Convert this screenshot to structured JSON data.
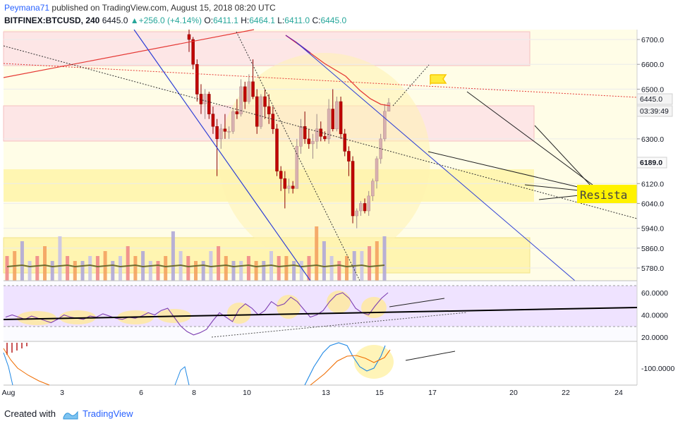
{
  "header": {
    "author": "Peymana71",
    "published_text": "published on TradingView.com, August 15, 2018 08:20 UTC",
    "symbol": "BITFINEX:BTCUSD, 240",
    "last": "6445.0",
    "change_arrow": "▲",
    "change": "+256.0 (+4.14%)",
    "o_label": "O:",
    "o_value": "6411.1",
    "h_label": "H:",
    "h_value": "6464.1",
    "l_label": "L:",
    "l_value": "6411.0",
    "c_label": "C:",
    "c_value": "6445.0"
  },
  "footer": {
    "created_with": "Created with",
    "brand": "TradingView"
  },
  "annotation_text": "Resista",
  "colors": {
    "up": "#d8b0b0",
    "down": "#c00000",
    "bg_price": "#fffde7",
    "bg_rsi": "#f3e8ff",
    "resistance_zone": "#fde0e0",
    "support_zone": "#fff6b0",
    "channel_line": "#2e3fd6",
    "trend_red": "#e53935"
  },
  "chart_data": {
    "type": "candlestick",
    "price_axis": {
      "ticks": [
        6700.0,
        6600.0,
        6500.0,
        6445.0,
        6300.0,
        6189.0,
        6120.0,
        6040.0,
        5940.0,
        5860.0,
        5780.0
      ],
      "tick_labels": [
        "6700.0",
        "6600.0",
        "6500.0",
        "6445.0",
        "6300.0",
        "6189.0",
        "6120.0",
        "6040.0",
        "5940.0",
        "5860.0",
        "5780.0"
      ],
      "last_price": 6445.0,
      "countdown": "03:39:49",
      "marker_price": 6189.0
    },
    "x_axis": {
      "tick_labels": [
        "Aug",
        "3",
        "6",
        "8",
        "10",
        "13",
        "15",
        "17",
        "20",
        "22",
        "24"
      ]
    },
    "candles": [
      {
        "o": 6720,
        "h": 6740,
        "l": 6650,
        "c": 6700
      },
      {
        "o": 6700,
        "h": 6710,
        "l": 6580,
        "c": 6600
      },
      {
        "o": 6600,
        "h": 6620,
        "l": 6450,
        "c": 6480
      },
      {
        "o": 6480,
        "h": 6520,
        "l": 6400,
        "c": 6440
      },
      {
        "o": 6440,
        "h": 6500,
        "l": 6380,
        "c": 6480
      },
      {
        "o": 6480,
        "h": 6490,
        "l": 6380,
        "c": 6400
      },
      {
        "o": 6400,
        "h": 6430,
        "l": 6320,
        "c": 6350
      },
      {
        "o": 6350,
        "h": 6380,
        "l": 6150,
        "c": 6300
      },
      {
        "o": 6300,
        "h": 6360,
        "l": 6260,
        "c": 6340
      },
      {
        "o": 6340,
        "h": 6400,
        "l": 6300,
        "c": 6330
      },
      {
        "o": 6330,
        "h": 6350,
        "l": 6300,
        "c": 6330
      },
      {
        "o": 6330,
        "h": 6420,
        "l": 6320,
        "c": 6410
      },
      {
        "o": 6410,
        "h": 6460,
        "l": 6380,
        "c": 6400
      },
      {
        "o": 6400,
        "h": 6540,
        "l": 6390,
        "c": 6510
      },
      {
        "o": 6510,
        "h": 6530,
        "l": 6420,
        "c": 6450
      },
      {
        "o": 6450,
        "h": 6560,
        "l": 6440,
        "c": 6530
      },
      {
        "o": 6530,
        "h": 6620,
        "l": 6460,
        "c": 6470
      },
      {
        "o": 6470,
        "h": 6500,
        "l": 6320,
        "c": 6350
      },
      {
        "o": 6350,
        "h": 6480,
        "l": 6340,
        "c": 6470
      },
      {
        "o": 6470,
        "h": 6500,
        "l": 6380,
        "c": 6430
      },
      {
        "o": 6430,
        "h": 6480,
        "l": 6360,
        "c": 6400
      },
      {
        "o": 6400,
        "h": 6430,
        "l": 6320,
        "c": 6340
      },
      {
        "o": 6340,
        "h": 6360,
        "l": 6150,
        "c": 6170
      },
      {
        "o": 6170,
        "h": 6190,
        "l": 6090,
        "c": 6140
      },
      {
        "o": 6140,
        "h": 6170,
        "l": 6020,
        "c": 6100
      },
      {
        "o": 6100,
        "h": 6140,
        "l": 6080,
        "c": 6110
      },
      {
        "o": 6110,
        "h": 6130,
        "l": 6080,
        "c": 6100
      },
      {
        "o": 6100,
        "h": 6300,
        "l": 6100,
        "c": 6270
      },
      {
        "o": 6270,
        "h": 6380,
        "l": 6240,
        "c": 6350
      },
      {
        "o": 6350,
        "h": 6410,
        "l": 6280,
        "c": 6300
      },
      {
        "o": 6300,
        "h": 6340,
        "l": 6260,
        "c": 6280
      },
      {
        "o": 6280,
        "h": 6320,
        "l": 6220,
        "c": 6290
      },
      {
        "o": 6290,
        "h": 6400,
        "l": 6260,
        "c": 6340
      },
      {
        "o": 6340,
        "h": 6370,
        "l": 6290,
        "c": 6310
      },
      {
        "o": 6310,
        "h": 6330,
        "l": 6290,
        "c": 6300
      },
      {
        "o": 6300,
        "h": 6460,
        "l": 6280,
        "c": 6420
      },
      {
        "o": 6420,
        "h": 6500,
        "l": 6330,
        "c": 6340
      },
      {
        "o": 6340,
        "h": 6470,
        "l": 6330,
        "c": 6450
      },
      {
        "o": 6450,
        "h": 6470,
        "l": 6300,
        "c": 6320
      },
      {
        "o": 6320,
        "h": 6340,
        "l": 6230,
        "c": 6250
      },
      {
        "o": 6250,
        "h": 6270,
        "l": 6150,
        "c": 6210
      },
      {
        "o": 6210,
        "h": 6230,
        "l": 5960,
        "c": 5990
      },
      {
        "o": 5990,
        "h": 6020,
        "l": 5940,
        "c": 6010
      },
      {
        "o": 6010,
        "h": 6050,
        "l": 5990,
        "c": 6040
      },
      {
        "o": 6040,
        "h": 6060,
        "l": 6000,
        "c": 6010
      },
      {
        "o": 6010,
        "h": 6090,
        "l": 5990,
        "c": 6070
      },
      {
        "o": 6070,
        "h": 6140,
        "l": 6050,
        "c": 6130
      },
      {
        "o": 6130,
        "h": 6230,
        "l": 6100,
        "c": 6220
      },
      {
        "o": 6220,
        "h": 6320,
        "l": 6200,
        "c": 6300
      },
      {
        "o": 6300,
        "h": 6440,
        "l": 6290,
        "c": 6411
      },
      {
        "o": 6411.1,
        "h": 6464.1,
        "l": 6411.0,
        "c": 6445.0
      }
    ],
    "volume": [
      5,
      6,
      8,
      4,
      5,
      7,
      4,
      9,
      5,
      4,
      4,
      5,
      5,
      6,
      4,
      5,
      7,
      5,
      6,
      4,
      4,
      5,
      10,
      6,
      5,
      4,
      4,
      6,
      7,
      5,
      4,
      4,
      5,
      4,
      4,
      6,
      5,
      5,
      4,
      4,
      5,
      11,
      8,
      5,
      4,
      5,
      6,
      6,
      7,
      8,
      9
    ],
    "rsi": {
      "ticks": [
        60.0,
        40.0,
        20.0
      ],
      "tick_labels": [
        "60.0000",
        "40.0000",
        "20.0000"
      ],
      "upper": 70,
      "lower": 30,
      "values": [
        38,
        40,
        38,
        36,
        39,
        37,
        35,
        33,
        36,
        40,
        38,
        37,
        36,
        39,
        38,
        41,
        39,
        37,
        36,
        38,
        37,
        39,
        42,
        40,
        44,
        46,
        38,
        30,
        25,
        22,
        24,
        27,
        35,
        42,
        38,
        34,
        45,
        50,
        46,
        40,
        44,
        52,
        48,
        50,
        56,
        52,
        45,
        38,
        40,
        44,
        52,
        58,
        60,
        55,
        46,
        42,
        40,
        48,
        55,
        60
      ]
    },
    "macd": {
      "ticks": [
        -100.0
      ],
      "tick_labels": [
        "-100.0000"
      ]
    }
  }
}
